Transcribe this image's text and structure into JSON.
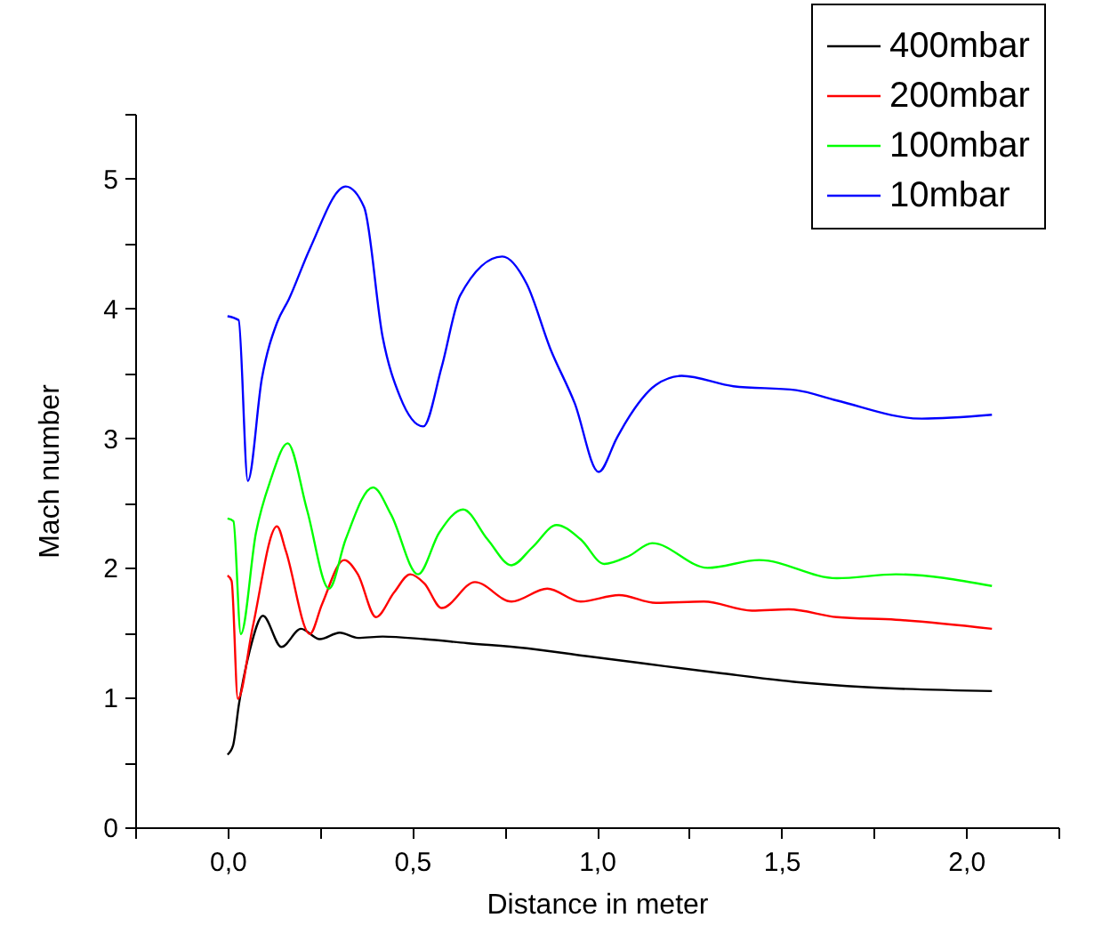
{
  "chart_data": {
    "type": "line",
    "xlabel": "Distance in meter",
    "ylabel": "Mach number",
    "xlim": [
      -0.25,
      2.25
    ],
    "ylim": [
      0,
      5.5
    ],
    "xticks": [
      {
        "value": -0.25,
        "label": null
      },
      {
        "value": 0,
        "label": "0,0"
      },
      {
        "value": 0.25,
        "label": null
      },
      {
        "value": 0.5,
        "label": "0,5"
      },
      {
        "value": 0.75,
        "label": null
      },
      {
        "value": 1,
        "label": "1,0"
      },
      {
        "value": 1.25,
        "label": null
      },
      {
        "value": 1.5,
        "label": "1,5"
      },
      {
        "value": 1.75,
        "label": null
      },
      {
        "value": 2,
        "label": "2,0"
      },
      {
        "value": 2.25,
        "label": null
      }
    ],
    "yticks": [
      0,
      {
        "value": 0.5,
        "label": null
      },
      1,
      {
        "value": 1.5,
        "label": null
      },
      2,
      {
        "value": 2.5,
        "label": null
      },
      3,
      {
        "value": 3.5,
        "label": null
      },
      4,
      {
        "value": 4.5,
        "label": null
      },
      5,
      {
        "value": 5.5,
        "label": null
      }
    ],
    "grid": false,
    "legend": "top right",
    "line_style": "solid",
    "marker": "none",
    "series": [
      {
        "name": "400mbar",
        "color": "#000000",
        "x": [
          0,
          0.015,
          0.031,
          0.06,
          0.096,
          0.146,
          0.199,
          0.25,
          0.304,
          0.353,
          0.42,
          0.533,
          0.648,
          0.81,
          0.97,
          1.135,
          1.33,
          1.54,
          1.73,
          2.07
        ],
        "values": [
          0.56,
          0.63,
          0.95,
          1.36,
          1.63,
          1.39,
          1.53,
          1.45,
          1.5,
          1.46,
          1.47,
          1.45,
          1.42,
          1.38,
          1.32,
          1.26,
          1.19,
          1.12,
          1.08,
          1.05
        ]
      },
      {
        "name": "200mbar",
        "color": "#ff0000",
        "x": [
          0,
          0.011,
          0.028,
          0.068,
          0.134,
          0.158,
          0.223,
          0.256,
          0.316,
          0.353,
          0.402,
          0.451,
          0.495,
          0.533,
          0.58,
          0.67,
          0.769,
          0.866,
          0.956,
          1.06,
          1.16,
          1.29,
          1.42,
          1.52,
          1.65,
          1.81,
          2.07
        ],
        "values": [
          1.94,
          1.9,
          0.99,
          1.54,
          2.32,
          2.13,
          1.49,
          1.72,
          2.06,
          1.95,
          1.62,
          1.81,
          1.95,
          1.88,
          1.69,
          1.89,
          1.74,
          1.84,
          1.74,
          1.79,
          1.73,
          1.74,
          1.67,
          1.68,
          1.62,
          1.6,
          1.53
        ]
      },
      {
        "name": "100mbar",
        "color": "#00ff00",
        "x": [
          0,
          0.016,
          0.036,
          0.077,
          0.117,
          0.163,
          0.215,
          0.275,
          0.32,
          0.394,
          0.443,
          0.516,
          0.573,
          0.638,
          0.704,
          0.769,
          0.826,
          0.891,
          0.956,
          1.02,
          1.086,
          1.15,
          1.3,
          1.44,
          1.65,
          1.81,
          2.07
        ],
        "values": [
          2.38,
          2.36,
          1.49,
          2.27,
          2.68,
          2.96,
          2.45,
          1.84,
          2.22,
          2.62,
          2.41,
          1.95,
          2.27,
          2.45,
          2.22,
          2.02,
          2.16,
          2.33,
          2.22,
          2.03,
          2.09,
          2.19,
          2.0,
          2.06,
          1.92,
          1.95,
          1.86
        ]
      },
      {
        "name": "10mbar",
        "color": "#0000ff",
        "x": [
          0,
          0.03,
          0.055,
          0.093,
          0.134,
          0.166,
          0.223,
          0.32,
          0.37,
          0.42,
          0.467,
          0.53,
          0.58,
          0.63,
          0.744,
          0.81,
          0.874,
          0.94,
          1.005,
          1.054,
          1.08,
          1.16,
          1.23,
          1.37,
          1.54,
          1.65,
          1.88,
          2.07
        ],
        "values": [
          3.94,
          3.91,
          2.67,
          3.46,
          3.89,
          4.07,
          4.46,
          4.94,
          4.78,
          3.78,
          3.32,
          3.09,
          3.55,
          4.1,
          4.4,
          4.19,
          3.69,
          3.27,
          2.74,
          3.0,
          3.13,
          3.41,
          3.48,
          3.4,
          3.37,
          3.29,
          3.15,
          3.18
        ]
      }
    ]
  }
}
